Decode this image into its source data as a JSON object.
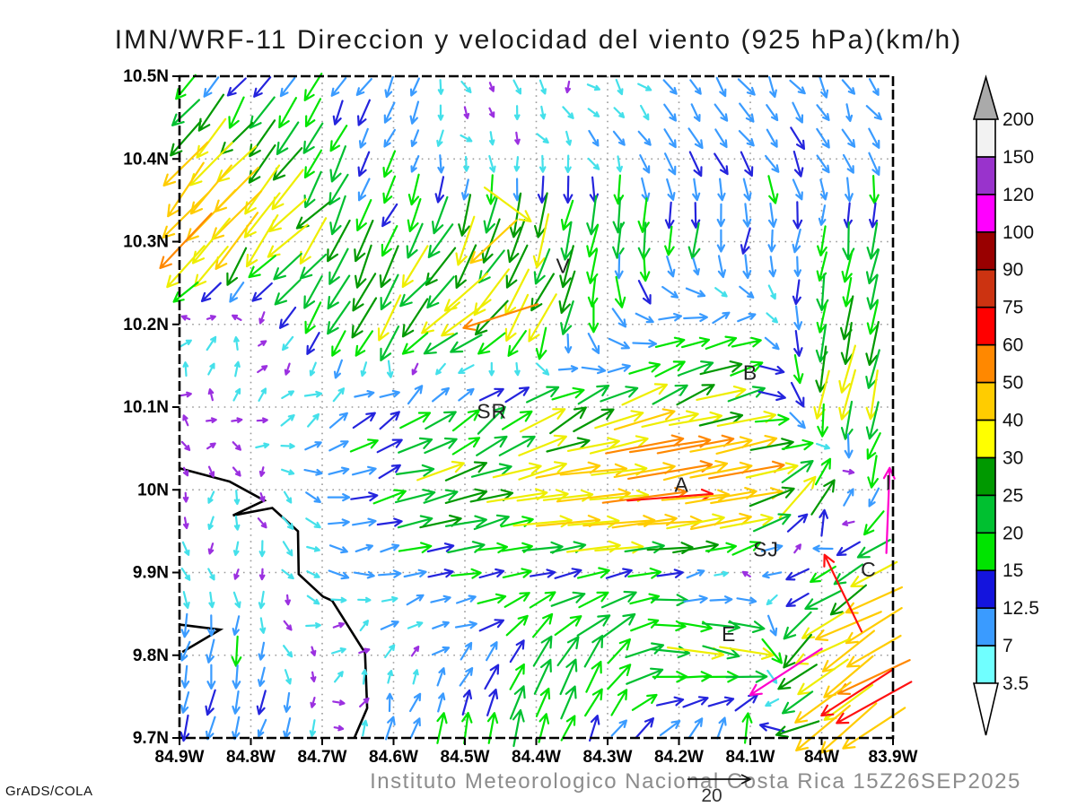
{
  "title": "IMN/WRF-11 Direccion y velocidad del viento (925 hPa)(km/h)",
  "footer": "Instituto Meteorologico Nacional Costa Rica  15Z26SEP2025",
  "credit": "GrADS/COLA",
  "chart_data": {
    "type": "quiver",
    "title": "IMN/WRF-11 Direccion y velocidad del viento (925 hPa)(km/h)",
    "model": "IMN/WRF-11",
    "variable": "Direccion y velocidad del viento",
    "level": "925 hPa",
    "units": "km/h",
    "valid_time": "15Z26SEP2025",
    "caption": "Instituto Meteorologico Nacional Costa Rica",
    "x_axis": {
      "ticks": [
        "84.9W",
        "84.8W",
        "84.7W",
        "84.6W",
        "84.5W",
        "84.4W",
        "84.3W",
        "84.2W",
        "84.1W",
        "84W",
        "83.9W"
      ],
      "lons": [
        -84.9,
        -84.8,
        -84.7,
        -84.6,
        -84.5,
        -84.4,
        -84.3,
        -84.2,
        -84.1,
        -84.0,
        -83.9
      ]
    },
    "y_axis": {
      "ticks": [
        "9.7N",
        "9.8N",
        "9.9N",
        "10N",
        "10.1N",
        "10.2N",
        "10.3N",
        "10.4N",
        "10.5N"
      ],
      "lats": [
        9.7,
        9.8,
        9.9,
        10.0,
        10.1,
        10.2,
        10.3,
        10.4,
        10.5
      ]
    },
    "lon_range": [
      -84.9,
      -83.9
    ],
    "lat_range": [
      9.7,
      10.5
    ],
    "grid_on": true,
    "legend": {
      "position": "right",
      "units": "km/h",
      "labels_bottom_to_top": [
        "3.5",
        "7",
        "12.5",
        "15",
        "20",
        "25",
        "30",
        "40",
        "50",
        "60",
        "75",
        "90",
        "100",
        "120",
        "150",
        "200"
      ],
      "band_colors_bottom_to_top": [
        "#70ffff",
        "#3a9bff",
        "#1414dd",
        "#00e400",
        "#00c030",
        "#009900",
        "#ffff00",
        "#ffcc00",
        "#ff8800",
        "#ff0000",
        "#cc3311",
        "#990000",
        "#ff00ff",
        "#9933cc",
        "#f2f2f2"
      ],
      "over_color": "#aaaaaa",
      "under_color": "#ffffff"
    },
    "arrow_palette": {
      "thresholds": [
        3.5,
        7,
        12.5,
        15,
        20,
        25,
        30,
        40,
        50,
        60,
        75,
        90,
        100,
        120,
        150
      ],
      "colors": [
        "#9b30e0",
        "#44e0ea",
        "#3a9bff",
        "#2424dd",
        "#00e400",
        "#00c030",
        "#009900",
        "#eeee00",
        "#ffcc00",
        "#ff8800",
        "#ff1111",
        "#dd4400",
        "#a00000",
        "#ff00cc",
        "#9933cc"
      ],
      "over_color": "#f0f0f0"
    },
    "wind_grid": {
      "comment": "approximate u,v (km/h, east/north positive) read from the plot on a 0.1 deg grid",
      "lons": [
        -84.9,
        -84.8,
        -84.7,
        -84.6,
        -84.5,
        -84.4,
        -84.3,
        -84.2,
        -84.1,
        -84.0,
        -83.9
      ],
      "lats": [
        9.7,
        9.8,
        9.9,
        10.0,
        10.1,
        10.2,
        10.3,
        10.4,
        10.5
      ],
      "u": [
        [
          -2,
          -2,
          -1,
          2,
          4,
          3,
          6,
          8,
          -4,
          -35,
          -45
        ],
        [
          -2,
          -1,
          3,
          3,
          5,
          10,
          12,
          28,
          30,
          -40,
          -48
        ],
        [
          1,
          1,
          5,
          10,
          14,
          18,
          22,
          10,
          -3,
          -15,
          -28
        ],
        [
          0,
          0,
          7,
          18,
          28,
          35,
          50,
          58,
          50,
          15,
          -8
        ],
        [
          1,
          1,
          8,
          12,
          15,
          20,
          25,
          32,
          30,
          -6,
          -8
        ],
        [
          2,
          2,
          -12,
          -15,
          -28,
          -15,
          3,
          15,
          10,
          -4,
          -6
        ],
        [
          -30,
          -25,
          -15,
          -8,
          -12,
          -8,
          -4,
          -3,
          -2,
          -3,
          -3
        ],
        [
          -28,
          -20,
          -10,
          -5,
          2,
          2,
          3,
          5,
          6,
          5,
          4
        ],
        [
          -8,
          -5,
          -6,
          -4,
          1.5,
          1.5,
          2,
          4,
          5,
          4,
          4
        ]
      ],
      "v": [
        [
          -10,
          -10,
          -6,
          10,
          16,
          18,
          10,
          8,
          18,
          -25,
          -30
        ],
        [
          -12,
          -12,
          2,
          3,
          5,
          16,
          18,
          -4,
          -8,
          -22,
          -28
        ],
        [
          -4,
          -4,
          -3,
          2,
          2,
          3,
          3,
          2,
          2,
          -10,
          -16
        ],
        [
          -3,
          -3,
          -2,
          5,
          7,
          6,
          5,
          6,
          10,
          28,
          -24
        ],
        [
          2,
          2,
          6,
          10,
          12,
          14,
          12,
          10,
          8,
          -26,
          -28
        ],
        [
          4,
          5,
          -20,
          -25,
          -18,
          -25,
          -12,
          5,
          3,
          -18,
          -24
        ],
        [
          -32,
          -30,
          -22,
          -18,
          -30,
          -32,
          -20,
          -18,
          -14,
          -16,
          -22
        ],
        [
          -30,
          -28,
          -18,
          -12,
          -3,
          -4,
          -5,
          -9,
          -10,
          -9,
          -8
        ],
        [
          -9,
          -10,
          -12,
          -10,
          -2.5,
          -2.5,
          -3,
          -7,
          -8,
          -7,
          -6
        ]
      ]
    },
    "extra_arrows": [
      {
        "lon": -84.44,
        "lat": 10.345,
        "u": 30,
        "v": -22
      },
      {
        "lon": -84.46,
        "lat": 10.3,
        "u": -30,
        "v": -28
      },
      {
        "lon": -84.45,
        "lat": 10.21,
        "u": -50,
        "v": -16
      },
      {
        "lon": -83.907,
        "lat": 9.975,
        "u": 4,
        "v": 103
      },
      {
        "lon": -84.05,
        "lat": 9.78,
        "u": -85,
        "v": -55
      },
      {
        "lon": -83.95,
        "lat": 9.755,
        "u": -62,
        "v": -40
      },
      {
        "lon": -83.97,
        "lat": 9.875,
        "u": -30,
        "v": 62
      }
    ],
    "cities": [
      {
        "label": "V",
        "lon": -84.362,
        "lat": 10.271
      },
      {
        "label": "SR",
        "lon": -84.462,
        "lat": 10.095
      },
      {
        "label": "B",
        "lon": -84.1,
        "lat": 10.142
      },
      {
        "label": "A",
        "lon": -84.196,
        "lat": 10.006
      },
      {
        "label": "SJ",
        "lon": -84.078,
        "lat": 9.928
      },
      {
        "label": "C",
        "lon": -83.934,
        "lat": 9.904
      },
      {
        "label": "I",
        "lon": -83.906,
        "lat": 10.009
      },
      {
        "label": "E",
        "lon": -84.13,
        "lat": 9.826
      }
    ],
    "coastline": [
      [
        -84.9,
        10.026
      ],
      [
        -84.83,
        10.01
      ],
      [
        -84.781,
        9.987
      ],
      [
        -84.825,
        9.969
      ],
      [
        -84.77,
        9.978
      ],
      [
        -84.734,
        9.95
      ],
      [
        -84.733,
        9.898
      ],
      [
        -84.699,
        9.871
      ],
      [
        -84.686,
        9.866
      ],
      [
        -84.64,
        9.803
      ],
      [
        -84.637,
        9.736
      ],
      [
        -84.655,
        9.7
      ]
    ],
    "coastline_secondary": [
      [
        -84.9,
        9.837
      ],
      [
        -84.843,
        9.831
      ],
      [
        -84.896,
        9.804
      ]
    ],
    "reference_arrow": {
      "label": "20"
    }
  }
}
